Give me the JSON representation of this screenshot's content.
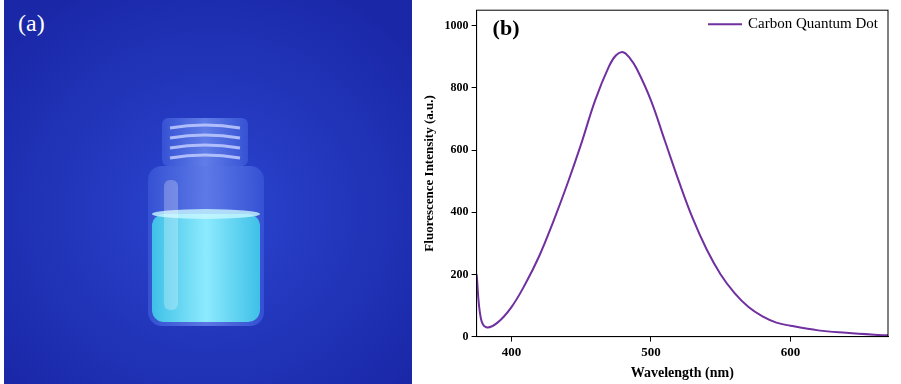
{
  "photo": {
    "label": "(a)"
  },
  "chart_data": {
    "type": "line",
    "panel": "(b)",
    "x_label": "Wavelength (nm)",
    "y_label": "Fluorescence Intensity (a.u.)",
    "x": [
      375,
      378,
      382,
      390,
      400,
      410,
      420,
      430,
      440,
      450,
      460,
      470,
      475,
      480,
      485,
      490,
      500,
      510,
      520,
      530,
      540,
      550,
      560,
      570,
      580,
      590,
      600,
      620,
      640,
      660,
      670
    ],
    "series": [
      {
        "name": "Carbon Quantum Dot",
        "color": "#7030a0",
        "values": [
          200,
          60,
          30,
          45,
          95,
          170,
          260,
          370,
          490,
          620,
          760,
          870,
          905,
          915,
          895,
          860,
          760,
          630,
          500,
          380,
          280,
          200,
          140,
          95,
          65,
          45,
          35,
          20,
          12,
          6,
          4
        ]
      }
    ],
    "xlim": [
      375,
      670
    ],
    "xticks": [
      400,
      500,
      600
    ],
    "ylim": [
      0,
      1050
    ],
    "yticks": [
      0,
      200,
      400,
      600,
      800,
      1000
    ],
    "legend": "top-right",
    "grid": false
  }
}
